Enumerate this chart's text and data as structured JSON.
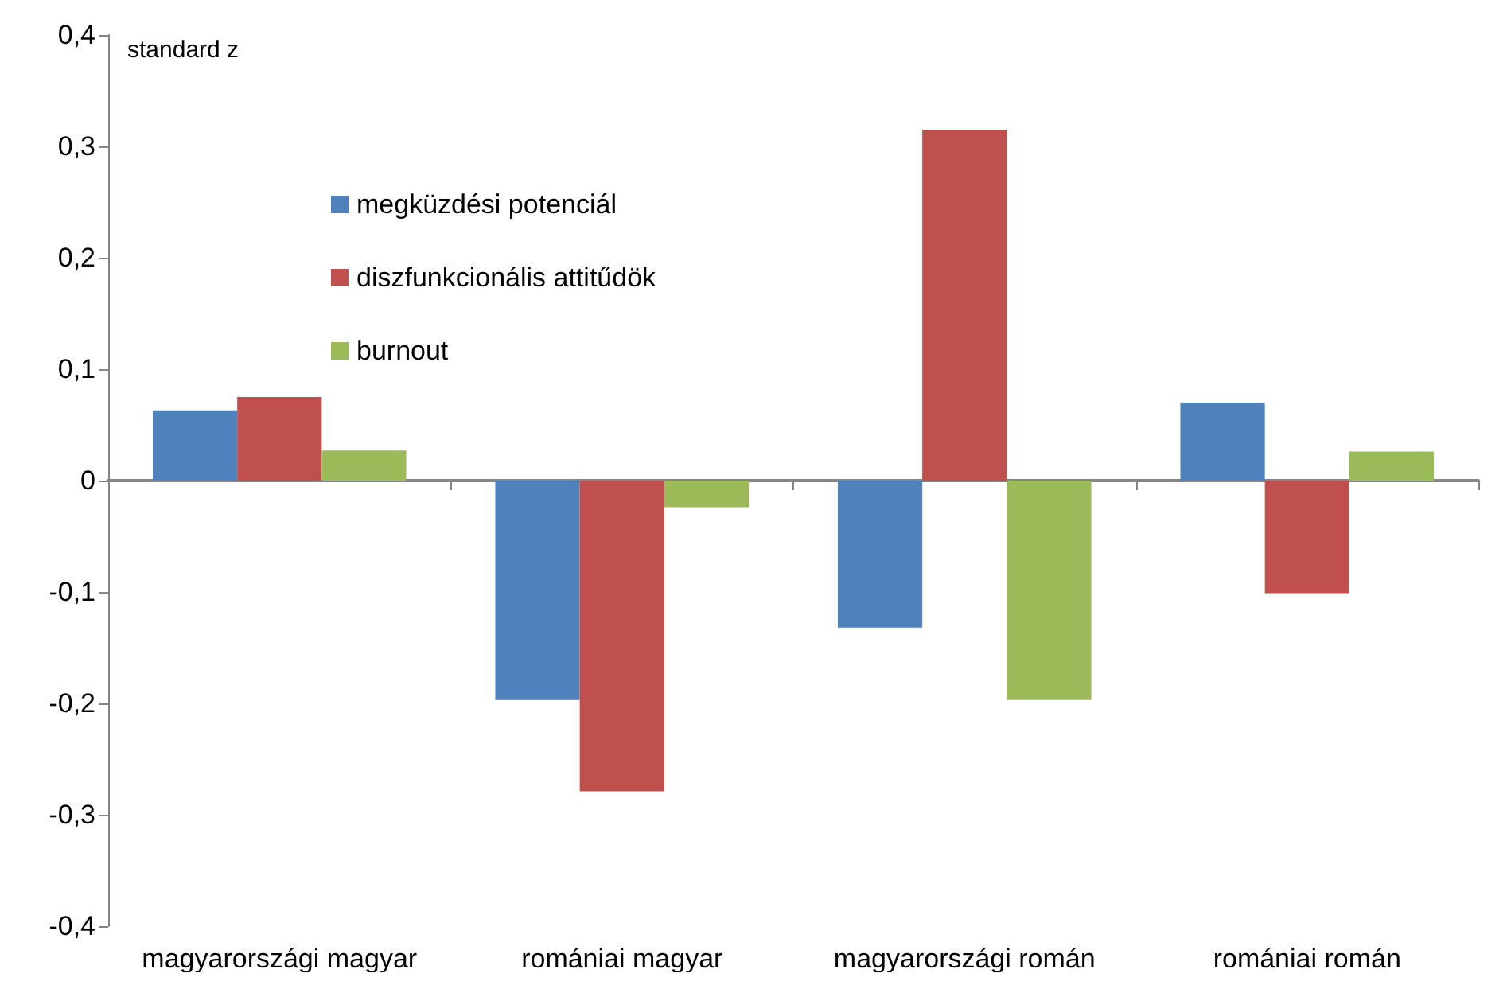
{
  "chart_data": {
    "type": "bar",
    "ylabel": "standard z",
    "categories": [
      "magyarországi magyar",
      "romániai magyar",
      "magyarországi román",
      "romániai román"
    ],
    "series": [
      {
        "name": "megküzdési potenciál",
        "color": "#4f81bd",
        "values": [
          0.063,
          -0.197,
          -0.132,
          0.07
        ]
      },
      {
        "name": "diszfunkcionális attitűdök",
        "color": "#c0504d",
        "values": [
          0.075,
          -0.279,
          0.315,
          -0.101
        ]
      },
      {
        "name": "burnout",
        "color": "#9bbb59",
        "values": [
          0.027,
          -0.024,
          -0.197,
          0.026
        ]
      }
    ],
    "ylim": [
      -0.4,
      0.4
    ],
    "yticks": [
      {
        "value": -0.4,
        "label": "-0,4"
      },
      {
        "value": -0.3,
        "label": "-0,3"
      },
      {
        "value": -0.2,
        "label": "-0,2"
      },
      {
        "value": -0.1,
        "label": "-0,1"
      },
      {
        "value": 0,
        "label": "0"
      },
      {
        "value": 0.1,
        "label": "0,1"
      },
      {
        "value": 0.2,
        "label": "0,2"
      },
      {
        "value": 0.3,
        "label": "0,3"
      },
      {
        "value": 0.4,
        "label": "0,4"
      }
    ],
    "legend": "top left"
  }
}
